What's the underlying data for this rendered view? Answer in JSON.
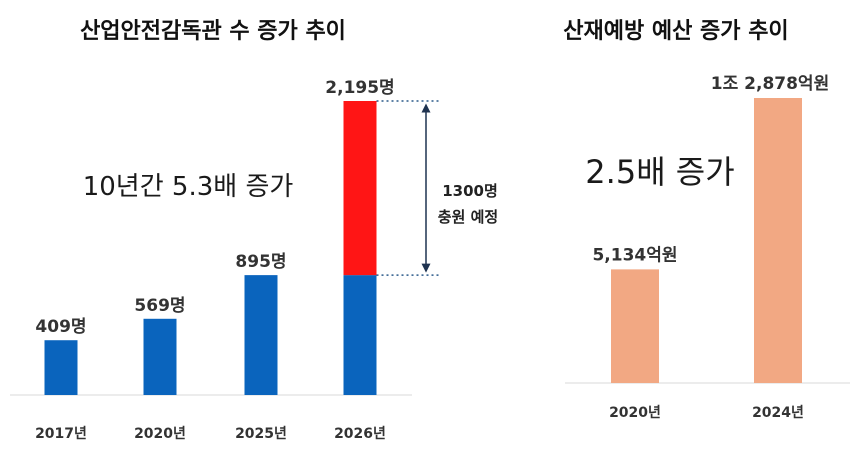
{
  "chart_data": [
    {
      "type": "bar",
      "title": "산업안전감독관 수 증가 추이",
      "categories": [
        "2017년",
        "2020년",
        "2025년",
        "2026년"
      ],
      "series": [
        {
          "values": [
            409,
            569,
            895,
            895
          ],
          "color": "#0a64bd"
        },
        {
          "values": [
            0,
            0,
            0,
            1300
          ],
          "color": "#ff1515"
        }
      ],
      "value_labels": [
        "409명",
        "569명",
        "895명",
        "2,195명"
      ],
      "annotation": "10년간 5.3배 증가",
      "bracket_label": [
        "1300명",
        "충원 예정"
      ],
      "ylim": [
        0,
        2195
      ],
      "stacked": true,
      "grid": false
    },
    {
      "type": "bar",
      "title": "산재예방 예산 증가 추이",
      "categories": [
        "2020년",
        "2024년"
      ],
      "values": [
        5134,
        12878
      ],
      "value_labels": [
        "5,134억원",
        "1조 2,878억원"
      ],
      "color": "#f2a883",
      "annotation": "2.5배 증가",
      "ylim": [
        0,
        12878
      ],
      "grid": false
    }
  ]
}
